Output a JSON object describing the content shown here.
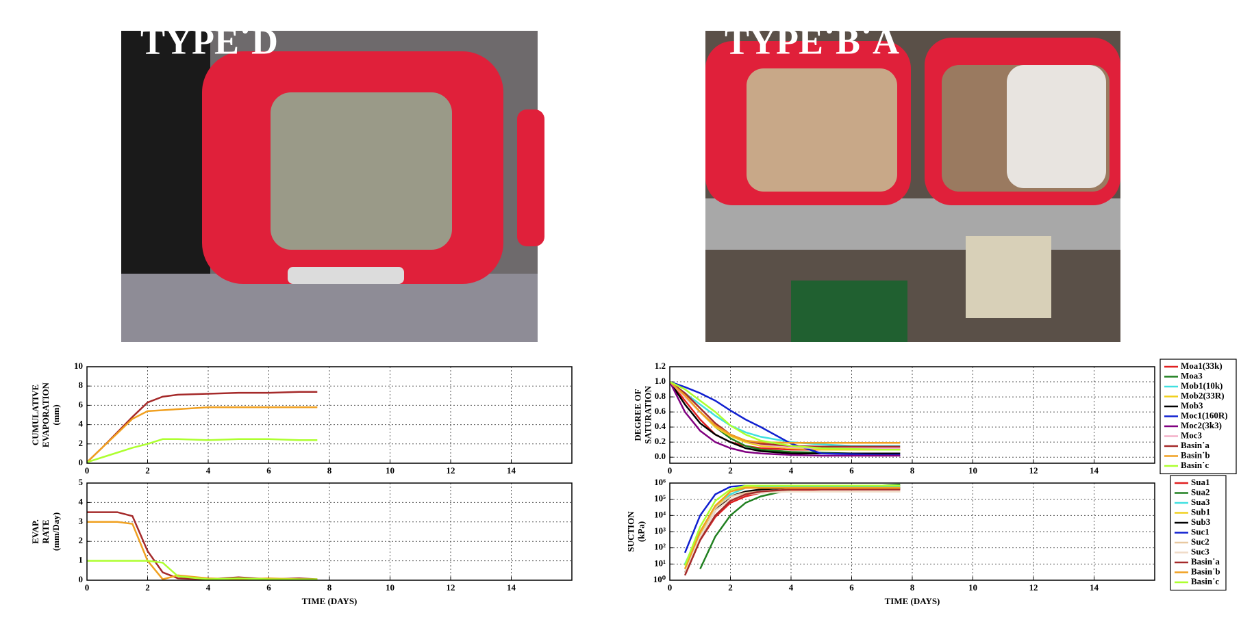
{
  "photos": [
    {
      "label": "TYPE˙D"
    },
    {
      "label": "TYPE˙B˙A"
    }
  ],
  "chart_data": [
    {
      "type": "line",
      "ylabel": [
        "CUMULATIVE",
        "EVAPORATION",
        "(mm)"
      ],
      "x": [
        0,
        0.5,
        1,
        1.5,
        2,
        2.5,
        3,
        4,
        5,
        6,
        7,
        7.6
      ],
      "xlim": [
        0,
        16
      ],
      "xticks": [
        0,
        2,
        4,
        6,
        8,
        10,
        12,
        14
      ],
      "ylim": [
        0,
        10
      ],
      "yticks": [
        0,
        2,
        4,
        6,
        8,
        10
      ],
      "grid": true,
      "series": [
        {
          "name": "Basin˙a",
          "color": "#a52a2a",
          "values": [
            0.1,
            1.6,
            3.2,
            4.8,
            6.3,
            6.9,
            7.1,
            7.2,
            7.3,
            7.3,
            7.4,
            7.4
          ]
        },
        {
          "name": "Basin˙b",
          "color": "#f0a020",
          "values": [
            0.1,
            1.6,
            3.1,
            4.6,
            5.4,
            5.5,
            5.6,
            5.8,
            5.8,
            5.8,
            5.8,
            5.8
          ]
        },
        {
          "name": "Basin˙c",
          "color": "#adff2f",
          "values": [
            0.1,
            0.6,
            1.1,
            1.6,
            2.0,
            2.5,
            2.5,
            2.4,
            2.5,
            2.5,
            2.4,
            2.4
          ]
        }
      ]
    },
    {
      "type": "line",
      "ylabel": [
        "EVAP.",
        "RATE",
        "(mm/Day)"
      ],
      "xlabel": "TIME (DAYS)",
      "x": [
        0,
        0.5,
        1,
        1.5,
        2,
        2.5,
        3,
        4,
        5,
        6,
        7,
        7.6
      ],
      "xlim": [
        0,
        16
      ],
      "xticks": [
        0,
        2,
        4,
        6,
        8,
        10,
        12,
        14
      ],
      "ylim": [
        0,
        5
      ],
      "yticks": [
        0,
        1,
        2,
        3,
        4,
        5
      ],
      "grid": true,
      "series": [
        {
          "name": "Basin˙a",
          "color": "#a52a2a",
          "values": [
            3.5,
            3.5,
            3.5,
            3.3,
            1.5,
            0.4,
            0.1,
            0.05,
            0.15,
            0.05,
            0.1,
            0.05
          ]
        },
        {
          "name": "Basin˙b",
          "color": "#f0a020",
          "values": [
            3.0,
            3.0,
            3.0,
            2.9,
            1.0,
            0.05,
            0.25,
            0.1,
            0.05,
            0.1,
            0.05,
            0.05
          ]
        },
        {
          "name": "Basin˙c",
          "color": "#adff2f",
          "values": [
            1.0,
            1.0,
            1.0,
            1.0,
            1.0,
            0.9,
            0.2,
            0.05,
            0.1,
            0.05,
            0.05,
            0.05
          ]
        }
      ]
    },
    {
      "type": "line",
      "ylabel": [
        "DEGREE OF",
        "SATURATION"
      ],
      "legend": "outside right",
      "x": [
        0,
        0.5,
        1,
        1.5,
        2,
        2.5,
        3,
        4,
        5,
        6,
        7,
        7.6
      ],
      "xlim": [
        0,
        16
      ],
      "xticks": [
        0,
        2,
        4,
        6,
        8,
        10,
        12,
        14
      ],
      "ylim": [
        -0.08,
        1.2
      ],
      "yticks": [
        {
          "value": 0,
          "label": "0.0"
        },
        0.2,
        0.4,
        0.6,
        0.8,
        {
          "value": 1,
          "label": "1.0"
        },
        1.2
      ],
      "grid": true,
      "series": [
        {
          "name": "Moa1(33k)",
          "color": "#e02020",
          "values": [
            1.0,
            0.75,
            0.5,
            0.3,
            0.2,
            0.15,
            0.12,
            0.1,
            0.1,
            0.1,
            0.1,
            0.1
          ]
        },
        {
          "name": "Moa3",
          "color": "#208020",
          "values": [
            1.0,
            0.8,
            0.6,
            0.4,
            0.25,
            0.15,
            0.1,
            0.07,
            0.06,
            0.05,
            0.05,
            0.05
          ]
        },
        {
          "name": "Mob1(10k)",
          "color": "#40e0e0",
          "values": [
            1.0,
            0.85,
            0.7,
            0.55,
            0.42,
            0.33,
            0.27,
            0.2,
            0.17,
            0.15,
            0.15,
            0.15
          ]
        },
        {
          "name": "Mob2(33R)",
          "color": "#f0d020",
          "values": [
            1.0,
            0.8,
            0.6,
            0.4,
            0.28,
            0.2,
            0.15,
            0.12,
            0.1,
            0.1,
            0.1,
            0.1
          ]
        },
        {
          "name": "Mob3",
          "color": "#000000",
          "values": [
            1.0,
            0.7,
            0.45,
            0.3,
            0.2,
            0.12,
            0.08,
            0.05,
            0.05,
            0.05,
            0.05,
            0.05
          ]
        },
        {
          "name": "Moc1(160R)",
          "color": "#1020d0",
          "values": [
            1.0,
            0.93,
            0.85,
            0.75,
            0.62,
            0.5,
            0.4,
            0.18,
            0.05,
            0.04,
            0.03,
            0.03
          ]
        },
        {
          "name": "Moc2(3k3)",
          "color": "#800080",
          "values": [
            1.0,
            0.6,
            0.35,
            0.2,
            0.12,
            0.07,
            0.05,
            0.03,
            0.02,
            0.02,
            0.02,
            0.02
          ]
        },
        {
          "name": "Moc3",
          "color": "#f4b0c8",
          "values": [
            1.0,
            0.8,
            0.6,
            0.42,
            0.3,
            0.22,
            0.17,
            0.13,
            0.12,
            0.12,
            0.12,
            0.12
          ]
        },
        {
          "name": "Basin˙a",
          "color": "#a52a2a",
          "values": [
            1.0,
            0.85,
            0.65,
            0.45,
            0.3,
            0.22,
            0.18,
            0.15,
            0.14,
            0.14,
            0.14,
            0.14
          ]
        },
        {
          "name": "Basin˙b",
          "color": "#f0a020",
          "values": [
            1.0,
            0.82,
            0.6,
            0.42,
            0.3,
            0.22,
            0.2,
            0.19,
            0.19,
            0.19,
            0.19,
            0.19
          ]
        },
        {
          "name": "Basin˙c",
          "color": "#adff2f",
          "values": [
            1.0,
            0.9,
            0.75,
            0.6,
            0.42,
            0.3,
            0.22,
            0.15,
            0.12,
            0.11,
            0.1,
            0.1
          ]
        }
      ]
    },
    {
      "type": "line",
      "ylabel": [
        "SUCTION",
        "(kPa)"
      ],
      "xlabel": "TIME (DAYS)",
      "legend": "outside right",
      "yscale": "log",
      "x": [
        0,
        0.5,
        1,
        1.5,
        2,
        2.5,
        3,
        4,
        5,
        6,
        7,
        7.6
      ],
      "xlim": [
        0,
        16
      ],
      "xticks": [
        0,
        2,
        4,
        6,
        8,
        10,
        12,
        14
      ],
      "ylim": [
        1,
        1000000
      ],
      "yticks": [
        {
          "value": 1,
          "label": "10⁰"
        },
        {
          "value": 10,
          "label": "10¹"
        },
        {
          "value": 100,
          "label": "10²"
        },
        {
          "value": 1000,
          "label": "10³"
        },
        {
          "value": 10000,
          "label": "10⁴"
        },
        {
          "value": 100000,
          "label": "10⁵"
        },
        {
          "value": 1000000,
          "label": "10⁶"
        }
      ],
      "grid": true,
      "series": [
        {
          "name": "Sua1",
          "color": "#e02020",
          "values": [
            null,
            3,
            300,
            8000,
            60000,
            150000,
            250000,
            350000,
            400000,
            400000,
            400000,
            400000
          ]
        },
        {
          "name": "Sua2",
          "color": "#208020",
          "values": [
            null,
            null,
            5,
            500,
            10000,
            60000,
            150000,
            400000,
            600000,
            700000,
            700000,
            800000
          ]
        },
        {
          "name": "Sua3",
          "color": "#40e0e0",
          "values": [
            null,
            10,
            1000,
            30000,
            200000,
            500000,
            600000,
            600000,
            600000,
            600000,
            600000,
            600000
          ]
        },
        {
          "name": "Sub1",
          "color": "#f0d020",
          "values": [
            null,
            5,
            800,
            30000,
            300000,
            600000,
            700000,
            700000,
            700000,
            700000,
            700000,
            700000
          ]
        },
        {
          "name": "Sub3",
          "color": "#000000",
          "values": [
            null,
            3,
            500,
            20000,
            150000,
            300000,
            400000,
            500000,
            500000,
            500000,
            500000,
            500000
          ]
        },
        {
          "name": "Suc1",
          "color": "#1020d0",
          "values": [
            null,
            50,
            10000,
            200000,
            600000,
            700000,
            700000,
            700000,
            700000,
            700000,
            700000,
            700000
          ]
        },
        {
          "name": "Suc2",
          "color": "#e8c8a0",
          "values": [
            null,
            5,
            1000,
            30000,
            150000,
            250000,
            300000,
            300000,
            300000,
            300000,
            300000,
            300000
          ]
        },
        {
          "name": "Suc3",
          "color": "#f0dcc8",
          "values": [
            null,
            3,
            500,
            20000,
            100000,
            200000,
            250000,
            300000,
            300000,
            300000,
            300000,
            300000
          ]
        },
        {
          "name": "Basin˙a",
          "color": "#a52a2a",
          "values": [
            null,
            2,
            300,
            10000,
            80000,
            200000,
            300000,
            400000,
            400000,
            400000,
            400000,
            400000
          ]
        },
        {
          "name": "Basin˙b",
          "color": "#f0a020",
          "values": [
            null,
            5,
            1000,
            40000,
            300000,
            500000,
            500000,
            500000,
            500000,
            500000,
            500000,
            500000
          ]
        },
        {
          "name": "Basin˙c",
          "color": "#adff2f",
          "values": [
            null,
            8,
            2000,
            80000,
            400000,
            700000,
            700000,
            700000,
            700000,
            700000,
            700000,
            700000
          ]
        }
      ]
    }
  ]
}
